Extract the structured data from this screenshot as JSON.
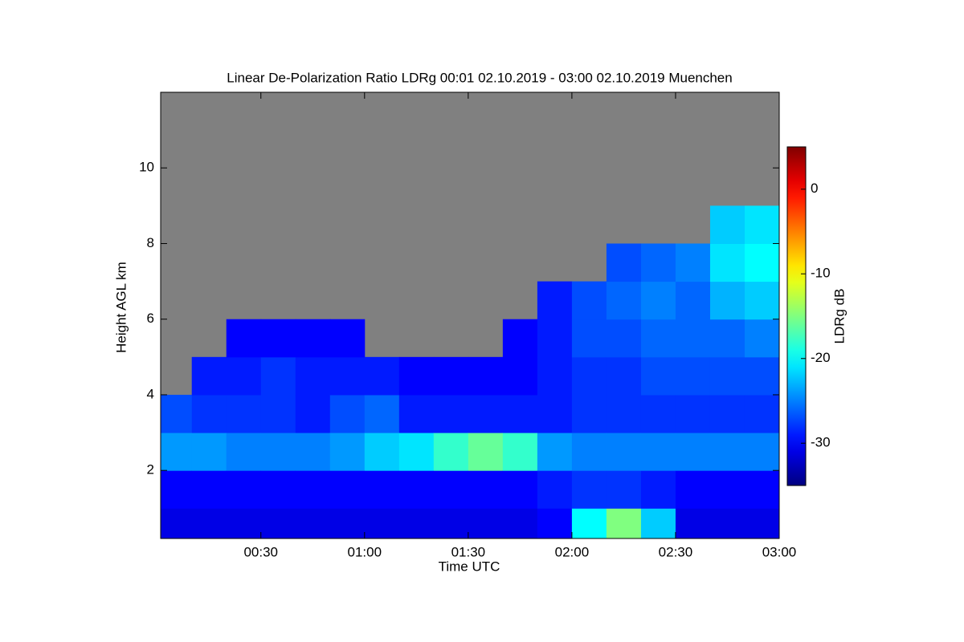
{
  "chart_data": {
    "type": "heatmap",
    "title": "Linear De-Polarization Ratio LDRg   00:01 02.10.2019 - 03:00 02.10.2019 Muenchen",
    "x_label": "Time UTC",
    "y_label": "Height AGL km",
    "colorbar_label": "LDRg dB",
    "colormap": "jet",
    "missing_color": "#808080",
    "x": [
      5,
      15,
      25,
      35,
      45,
      55,
      65,
      75,
      85,
      95,
      105,
      115,
      125,
      135,
      145,
      155,
      165,
      175
    ],
    "y": [
      0.5,
      1.5,
      2.5,
      3.5,
      4.5,
      5.5,
      6.5,
      7.5,
      8.5,
      9.5,
      10.5,
      11.5
    ],
    "z": [
      [
        -31,
        -30,
        -24,
        -27,
        null,
        null,
        null,
        null,
        null,
        null,
        null,
        null
      ],
      [
        -31,
        -30,
        -24,
        -28,
        -29,
        null,
        null,
        null,
        null,
        null,
        null,
        null
      ],
      [
        -31,
        -30,
        -25,
        -28,
        -29,
        -30,
        null,
        null,
        null,
        null,
        null,
        null
      ],
      [
        -31,
        -30,
        -25,
        -28,
        -28,
        -30,
        null,
        null,
        null,
        null,
        null,
        null
      ],
      [
        -31,
        -30,
        -25,
        -29,
        -29,
        -30,
        null,
        null,
        null,
        null,
        null,
        null
      ],
      [
        -31,
        -30,
        -24,
        -27,
        -29,
        -30,
        null,
        null,
        null,
        null,
        null,
        null
      ],
      [
        -31,
        -30,
        -22,
        -26,
        -29,
        null,
        null,
        null,
        null,
        null,
        null,
        null
      ],
      [
        -31,
        -30,
        -21,
        -29,
        -30,
        null,
        null,
        null,
        null,
        null,
        null,
        null
      ],
      [
        -31,
        -30,
        -18,
        -29,
        -30,
        null,
        null,
        null,
        null,
        null,
        null,
        null
      ],
      [
        -31,
        -30,
        -16,
        -29,
        -30,
        null,
        null,
        null,
        null,
        null,
        null,
        null
      ],
      [
        -31,
        -30,
        -18,
        -29,
        -30,
        -30,
        null,
        null,
        null,
        null,
        null,
        null
      ],
      [
        -30,
        -29,
        -24,
        -29,
        -29,
        -29,
        -29,
        null,
        null,
        null,
        null,
        null
      ],
      [
        -20,
        -28,
        -25,
        -28,
        -28,
        -27,
        -27,
        null,
        null,
        null,
        null,
        null
      ],
      [
        -15,
        -28,
        -25,
        -28,
        -28,
        -27,
        -26,
        -27,
        null,
        null,
        null,
        null
      ],
      [
        -22,
        -29,
        -25,
        -28,
        -27,
        -26,
        -25,
        -26,
        null,
        null,
        null,
        null
      ],
      [
        -31,
        -30,
        -25,
        -28,
        -27,
        -26,
        -26,
        -25,
        null,
        null,
        null,
        null
      ],
      [
        -31,
        -30,
        -25,
        -28,
        -27,
        -26,
        -23,
        -21,
        -22,
        null,
        null,
        null
      ],
      [
        -31,
        -30,
        -25,
        -28,
        -27,
        -25,
        -22,
        -20,
        -21,
        null,
        null,
        null
      ]
    ],
    "xlim": [
      1,
      180
    ],
    "xticks": [
      {
        "value": 30,
        "label": "00:30"
      },
      {
        "value": 60,
        "label": "01:00"
      },
      {
        "value": 90,
        "label": "01:30"
      },
      {
        "value": 120,
        "label": "02:00"
      },
      {
        "value": 150,
        "label": "02:30"
      },
      {
        "value": 180,
        "label": "03:00"
      }
    ],
    "ylim": [
      0.2,
      12
    ],
    "yticks": [
      2,
      4,
      6,
      8,
      10
    ],
    "zlim": [
      -35,
      5
    ],
    "zticks": [
      0,
      -10,
      -20,
      -30
    ]
  }
}
